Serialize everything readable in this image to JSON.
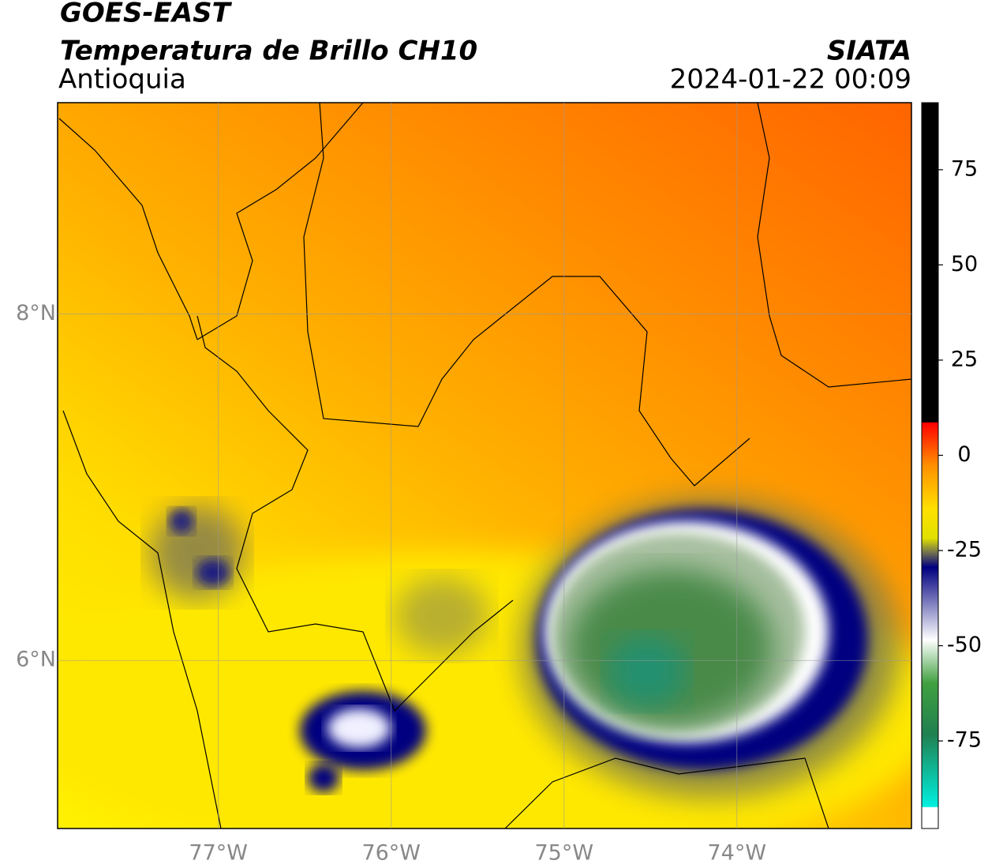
{
  "header": {
    "title": "GOES-EAST",
    "subtitle": "Temperatura de Brillo CH10",
    "region": "Antioquia",
    "source": "SIATA",
    "datetime": "2024-01-22 00:09"
  },
  "map": {
    "xlim": [
      -77.93,
      -72.99
    ],
    "ylim": [
      5.03,
      9.22
    ],
    "xticks": [
      {
        "value": -77,
        "label": "77°W"
      },
      {
        "value": -76,
        "label": "76°W"
      },
      {
        "value": -75,
        "label": "75°W"
      },
      {
        "value": -74,
        "label": "74°W"
      }
    ],
    "yticks": [
      {
        "value": 8,
        "label": "8°N"
      },
      {
        "value": 6,
        "label": "6°N"
      }
    ]
  },
  "colorbar": {
    "ylim": [
      -98,
      92.6
    ],
    "ticks": [
      75,
      50,
      25,
      0,
      -25,
      -50,
      -75
    ]
  }
}
